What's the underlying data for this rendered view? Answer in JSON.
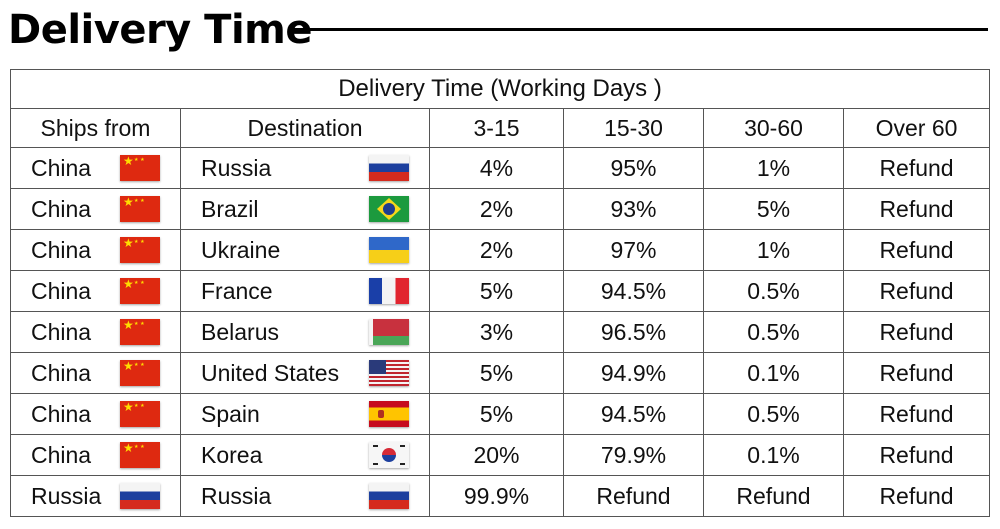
{
  "page": {
    "title": "Delivery Time"
  },
  "table": {
    "caption": "Delivery Time (Working Days )",
    "headers": {
      "ships_from": "Ships from",
      "destination": "Destination",
      "c1": "3-15",
      "c2": "15-30",
      "c3": "30-60",
      "c4": "Over 60"
    },
    "rows": [
      {
        "from": "China",
        "from_flag": "china-flag-icon",
        "to": "Russia",
        "to_flag": "russia-flag-icon",
        "c1": "4%",
        "c2": "95%",
        "c3": "1%",
        "c4": "Refund"
      },
      {
        "from": "China",
        "from_flag": "china-flag-icon",
        "to": "Brazil",
        "to_flag": "brazil-flag-icon",
        "c1": "2%",
        "c2": "93%",
        "c3": "5%",
        "c4": "Refund"
      },
      {
        "from": "China",
        "from_flag": "china-flag-icon",
        "to": "Ukraine",
        "to_flag": "ukraine-flag-icon",
        "c1": "2%",
        "c2": "97%",
        "c3": "1%",
        "c4": "Refund"
      },
      {
        "from": "China",
        "from_flag": "china-flag-icon",
        "to": "France",
        "to_flag": "france-flag-icon",
        "c1": "5%",
        "c2": "94.5%",
        "c3": "0.5%",
        "c4": "Refund"
      },
      {
        "from": "China",
        "from_flag": "china-flag-icon",
        "to": "Belarus",
        "to_flag": "belarus-flag-icon",
        "c1": "3%",
        "c2": "96.5%",
        "c3": "0.5%",
        "c4": "Refund"
      },
      {
        "from": "China",
        "from_flag": "china-flag-icon",
        "to": "United States",
        "to_flag": "usa-flag-icon",
        "c1": "5%",
        "c2": "94.9%",
        "c3": "0.1%",
        "c4": "Refund"
      },
      {
        "from": "China",
        "from_flag": "china-flag-icon",
        "to": "Spain",
        "to_flag": "spain-flag-icon",
        "c1": "5%",
        "c2": "94.5%",
        "c3": "0.5%",
        "c4": "Refund"
      },
      {
        "from": "China",
        "from_flag": "china-flag-icon",
        "to": "Korea",
        "to_flag": "korea-flag-icon",
        "c1": "20%",
        "c2": "79.9%",
        "c3": "0.1%",
        "c4": "Refund"
      },
      {
        "from": "Russia",
        "from_flag": "russia-flag-icon",
        "to": "Russia",
        "to_flag": "russia-flag-icon",
        "c1": "99.9%",
        "c2": "Refund",
        "c3": "Refund",
        "c4": "Refund"
      }
    ]
  }
}
